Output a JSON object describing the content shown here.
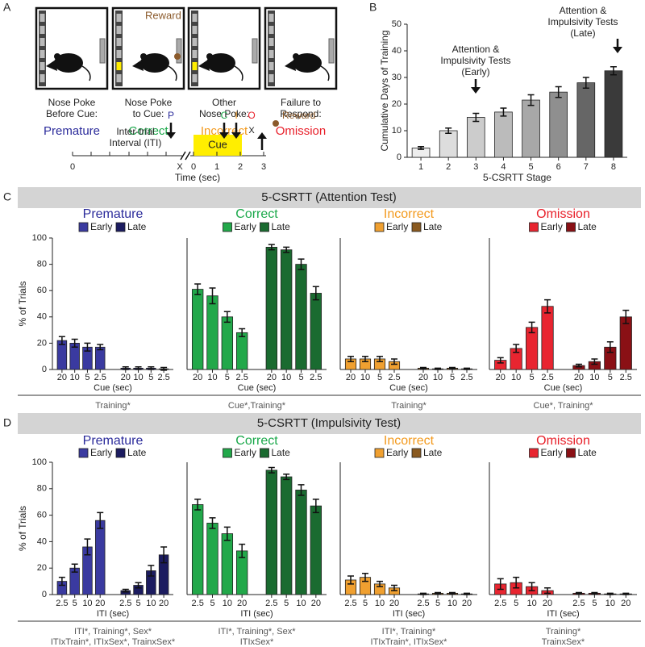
{
  "panel_labels": [
    "A",
    "B",
    "C",
    "D"
  ],
  "sections": [
    "5-CSRTT (Attention Test)",
    "5-CSRTT (Impulsivity Test)"
  ],
  "diagram": {
    "reward_top": "Reward",
    "reward_color": "#8b5a2b",
    "light_color": "#ffee00",
    "boxes": [
      {
        "caption": [
          "Nose Poke",
          "Before Cue:"
        ],
        "outcome": "Premature",
        "color": "#2b2b9b"
      },
      {
        "caption": [
          "Nose Poke",
          "to Cue:"
        ],
        "outcome": "Correct",
        "color": "#1aa84a"
      },
      {
        "caption": [
          "Other",
          "Nose Poke:"
        ],
        "outcome": "Incorrect",
        "color": "#f39a1e"
      },
      {
        "caption": [
          "Failure to",
          "Respond:"
        ],
        "outcome": "Omission",
        "color": "#e8202a"
      }
    ],
    "timeline": {
      "iti_label": [
        "Inter-trial",
        "Interval (ITI)"
      ],
      "cue": "Cue",
      "break_mark": "X",
      "start": "0",
      "ticks": [
        "0",
        "1",
        "2",
        "3"
      ],
      "axis_label": "Time (sec)",
      "markers": [
        {
          "letter": "P",
          "color": "#2b2b9b"
        },
        {
          "letter": "C",
          "color": "#1aa84a"
        },
        {
          "letter": "I",
          "color": "#f39a1e"
        },
        {
          "letter": "O",
          "color": "#e8202a"
        }
      ],
      "omit_mark": "X",
      "reward": "Reward"
    }
  },
  "chart_data": [
    {
      "type": "bar",
      "ylabel": "Cumulative Days of Training",
      "xlabel": "5-CSRTT Stage",
      "categories": [
        "1",
        "2",
        "3",
        "4",
        "5",
        "6",
        "7",
        "8"
      ],
      "values": [
        3.5,
        10,
        15,
        17,
        21.5,
        24.5,
        28,
        32.5
      ],
      "errors": [
        0.5,
        1,
        1.5,
        1.5,
        2,
        2,
        2,
        1.5
      ],
      "colors": [
        "#eeeeee",
        "#dddddd",
        "#cccccc",
        "#bbbbbb",
        "#a8a8a8",
        "#8f8f8f",
        "#666666",
        "#3a3a3a"
      ],
      "ylim": [
        0,
        50
      ],
      "yticks": [
        0,
        10,
        20,
        30,
        40,
        50
      ],
      "annotations": [
        [
          "Attention &",
          "Impulsivity Tests",
          "(Early)"
        ],
        [
          "Attention &",
          "Impulsivity Tests",
          "(Late)"
        ]
      ]
    },
    {
      "type": "grouped_bar",
      "title": "Premature",
      "title_color": "#2b2b9b",
      "ylabel": "% of Trials",
      "xlabel": "Cue (sec)",
      "categories": [
        "20",
        "10",
        "5",
        "2.5"
      ],
      "ylim": [
        0,
        100
      ],
      "yticks": [
        0,
        20,
        40,
        60,
        80,
        100
      ],
      "stats": [
        "Training*"
      ],
      "series": [
        {
          "name": "Early",
          "color": "#3a3aa0",
          "values": [
            22,
            20,
            17,
            17
          ],
          "errors": [
            3,
            3,
            3,
            2
          ]
        },
        {
          "name": "Late",
          "color": "#1c1c60",
          "values": [
            1,
            1,
            1,
            0.5
          ],
          "errors": [
            1,
            1,
            1,
            1
          ]
        }
      ]
    },
    {
      "type": "grouped_bar",
      "title": "Correct",
      "title_color": "#1aa84a",
      "xlabel": "Cue (sec)",
      "categories": [
        "20",
        "10",
        "5",
        "2.5"
      ],
      "ylim": [
        0,
        100
      ],
      "stats": [
        "Cue*,Training*"
      ],
      "series": [
        {
          "name": "Early",
          "color": "#22a84a",
          "values": [
            61,
            56,
            40,
            28
          ],
          "errors": [
            4,
            6,
            4,
            3
          ]
        },
        {
          "name": "Late",
          "color": "#1a6b30",
          "values": [
            93,
            91,
            80,
            58
          ],
          "errors": [
            2,
            2,
            4,
            5
          ]
        }
      ]
    },
    {
      "type": "grouped_bar",
      "title": "Incorrect",
      "title_color": "#f39a1e",
      "xlabel": "Cue (sec)",
      "categories": [
        "20",
        "10",
        "5",
        "2.5"
      ],
      "ylim": [
        0,
        100
      ],
      "stats": [
        "Training*"
      ],
      "series": [
        {
          "name": "Early",
          "color": "#f0a030",
          "values": [
            8,
            8,
            8,
            6
          ],
          "errors": [
            2,
            2,
            2,
            2
          ]
        },
        {
          "name": "Late",
          "color": "#8a5a20",
          "values": [
            1,
            0.5,
            1,
            0.5
          ],
          "errors": [
            0.5,
            0.5,
            0.5,
            0.5
          ]
        }
      ]
    },
    {
      "type": "grouped_bar",
      "title": "Omission",
      "title_color": "#e8202a",
      "xlabel": "Cue (sec)",
      "categories": [
        "20",
        "10",
        "5",
        "2.5"
      ],
      "ylim": [
        0,
        100
      ],
      "stats": [
        "Cue*, Training*"
      ],
      "series": [
        {
          "name": "Early",
          "color": "#e82530",
          "values": [
            7,
            16,
            32,
            48
          ],
          "errors": [
            2,
            3,
            4,
            5
          ]
        },
        {
          "name": "Late",
          "color": "#8a1015",
          "values": [
            3,
            6,
            17,
            40
          ],
          "errors": [
            1,
            2,
            4,
            5
          ]
        }
      ]
    },
    {
      "type": "grouped_bar",
      "title": "Premature",
      "title_color": "#2b2b9b",
      "ylabel": "% of Trials",
      "xlabel": "ITI (sec)",
      "categories": [
        "2.5",
        "5",
        "10",
        "20"
      ],
      "ylim": [
        0,
        100
      ],
      "yticks": [
        0,
        20,
        40,
        60,
        80,
        100
      ],
      "stats": [
        "ITI*, Training*, Sex*",
        "ITIxTrain*, ITIxSex*, TrainxSex*"
      ],
      "series": [
        {
          "name": "Early",
          "color": "#3a3aa0",
          "values": [
            10,
            20,
            36,
            56
          ],
          "errors": [
            3,
            3,
            6,
            6
          ]
        },
        {
          "name": "Late",
          "color": "#1c1c60",
          "values": [
            3,
            7,
            18,
            30
          ],
          "errors": [
            1,
            2,
            4,
            6
          ]
        }
      ]
    },
    {
      "type": "grouped_bar",
      "title": "Correct",
      "title_color": "#1aa84a",
      "xlabel": "ITI (sec)",
      "categories": [
        "2.5",
        "5",
        "10",
        "20"
      ],
      "ylim": [
        0,
        100
      ],
      "stats": [
        "ITI*, Training*, Sex*",
        "ITIxSex*"
      ],
      "series": [
        {
          "name": "Early",
          "color": "#22a84a",
          "values": [
            68,
            54,
            46,
            33
          ],
          "errors": [
            4,
            4,
            5,
            5
          ]
        },
        {
          "name": "Late",
          "color": "#1a6b30",
          "values": [
            94,
            89,
            79,
            67
          ],
          "errors": [
            2,
            2,
            4,
            5
          ]
        }
      ]
    },
    {
      "type": "grouped_bar",
      "title": "Incorrect",
      "title_color": "#f39a1e",
      "xlabel": "ITI (sec)",
      "categories": [
        "2.5",
        "5",
        "10",
        "20"
      ],
      "ylim": [
        0,
        100
      ],
      "stats": [
        "ITI*, Training*",
        "ITIxTrain*, ITIxSex*"
      ],
      "series": [
        {
          "name": "Early",
          "color": "#f0a030",
          "values": [
            11,
            13,
            8,
            5
          ],
          "errors": [
            3,
            3,
            2,
            2
          ]
        },
        {
          "name": "Late",
          "color": "#8a5a20",
          "values": [
            0.5,
            1,
            1,
            0.5
          ],
          "errors": [
            0.5,
            0.5,
            0.5,
            0.5
          ]
        }
      ]
    },
    {
      "type": "grouped_bar",
      "title": "Omission",
      "title_color": "#e8202a",
      "xlabel": "ITI (sec)",
      "categories": [
        "2.5",
        "5",
        "10",
        "20"
      ],
      "ylim": [
        0,
        100
      ],
      "stats": [
        "Training*",
        "TrainxSex*"
      ],
      "series": [
        {
          "name": "Early",
          "color": "#e82530",
          "values": [
            8,
            9,
            6,
            3
          ],
          "errors": [
            4,
            4,
            3,
            2
          ]
        },
        {
          "name": "Late",
          "color": "#8a1015",
          "values": [
            1,
            1,
            0.5,
            0.5
          ],
          "errors": [
            0.5,
            0.5,
            0.5,
            0.5
          ]
        }
      ]
    }
  ]
}
